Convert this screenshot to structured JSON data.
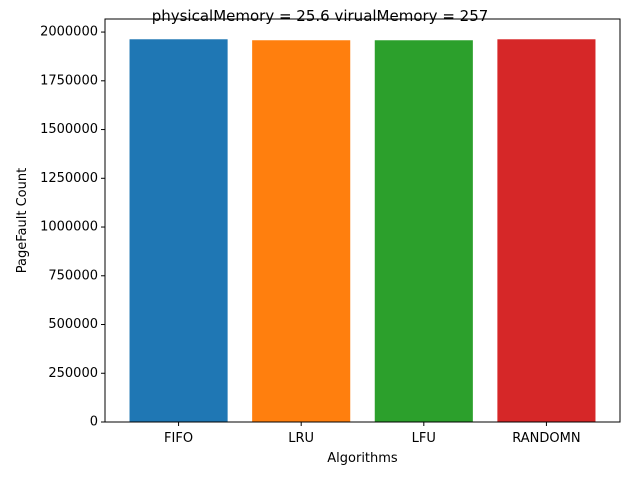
{
  "chart_data": {
    "type": "bar",
    "title": "physicalMemory = 25.6 virualMemory = 257",
    "xlabel": "Algorithms",
    "ylabel": "PageFault Count",
    "categories": [
      "FIFO",
      "LRU",
      "LFU",
      "RANDOMN"
    ],
    "values": [
      1963000,
      1958000,
      1958000,
      1963000
    ],
    "colors": [
      "#1f77b4",
      "#ff7f0e",
      "#2ca02c",
      "#d62728"
    ],
    "ylim": [
      0,
      2067000
    ],
    "yticks": [
      0,
      250000,
      500000,
      750000,
      1000000,
      1250000,
      1500000,
      1750000,
      2000000
    ],
    "grid": false
  }
}
